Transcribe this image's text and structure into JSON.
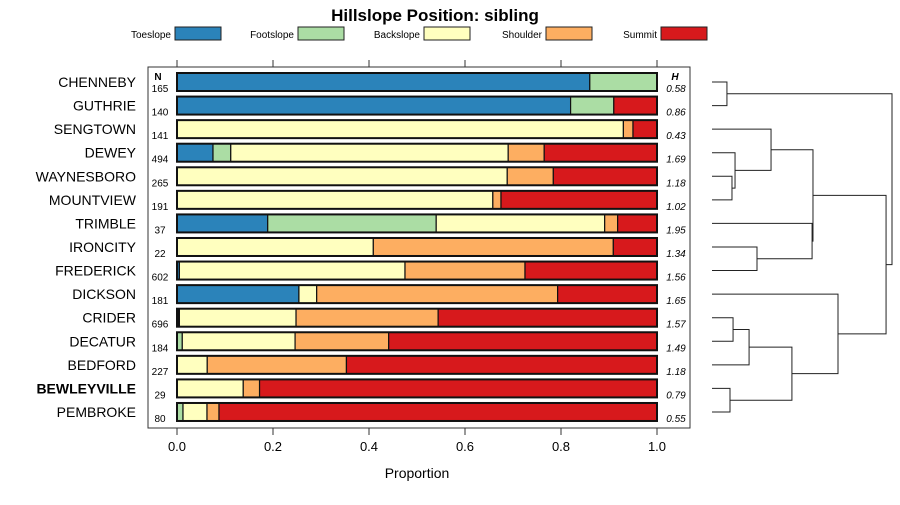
{
  "chart_data": {
    "type": "bar",
    "orientation": "horizontal-stacked",
    "title": "Hillslope Position: sibling",
    "xlabel": "Proportion",
    "xlim": [
      0,
      1
    ],
    "xticks": [
      "0.0",
      "0.2",
      "0.4",
      "0.6",
      "0.8",
      "1.0"
    ],
    "xtick_values": [
      0,
      0.2,
      0.4,
      0.6,
      0.8,
      1.0
    ],
    "legend_position": "top",
    "n_header": "N",
    "h_header": "H",
    "highlight": "BEWLEYVILLE",
    "series": [
      {
        "name": "Toeslope",
        "color": "#2b83ba"
      },
      {
        "name": "Footslope",
        "color": "#abdda4"
      },
      {
        "name": "Backslope",
        "color": "#ffffbf"
      },
      {
        "name": "Shoulder",
        "color": "#fdae61"
      },
      {
        "name": "Summit",
        "color": "#d7191c"
      }
    ],
    "categories": [
      "CHENNEBY",
      "GUTHRIE",
      "SENGTOWN",
      "DEWEY",
      "WAYNESBORO",
      "MOUNTVIEW",
      "TRIMBLE",
      "IRONCITY",
      "FREDERICK",
      "DICKSON",
      "CRIDER",
      "DECATUR",
      "BEDFORD",
      "BEWLEYVILLE",
      "PEMBROKE"
    ],
    "n": [
      "165",
      "140",
      "141",
      "494",
      "265",
      "191",
      "37",
      "22",
      "602",
      "181",
      "696",
      "184",
      "227",
      "29",
      "80"
    ],
    "h": [
      "0.58",
      "0.86",
      "0.43",
      "1.69",
      "1.18",
      "1.02",
      "1.95",
      "1.34",
      "1.56",
      "1.65",
      "1.57",
      "1.49",
      "1.18",
      "0.79",
      "0.55"
    ],
    "values": [
      [
        0.86,
        0.14,
        0,
        0,
        0
      ],
      [
        0.82,
        0.09,
        0,
        0,
        0.09
      ],
      [
        0,
        0,
        0.93,
        0.02,
        0.05
      ],
      [
        0.075,
        0.037,
        0.578,
        0.075,
        0.235
      ],
      [
        0,
        0,
        0.688,
        0.096,
        0.216
      ],
      [
        0,
        0,
        0.658,
        0.017,
        0.325
      ],
      [
        0.189,
        0.351,
        0.351,
        0.027,
        0.082
      ],
      [
        0,
        0,
        0.409,
        0.5,
        0.091
      ],
      [
        0.005,
        0,
        0.47,
        0.25,
        0.275
      ],
      [
        0.254,
        0,
        0.037,
        0.502,
        0.207
      ],
      [
        0.003,
        0.002,
        0.243,
        0.296,
        0.456
      ],
      [
        0,
        0.011,
        0.235,
        0.195,
        0.559
      ],
      [
        0,
        0,
        0.063,
        0.29,
        0.647
      ],
      [
        0,
        0,
        0.138,
        0.034,
        0.828
      ],
      [
        0,
        0.0125,
        0.05,
        0.025,
        0.9125
      ]
    ],
    "dendrogram": {
      "merges": [
        {
          "a": "L0",
          "b": "L1",
          "height": 0.083
        },
        {
          "a": "L4",
          "b": "L5",
          "height": 0.111
        },
        {
          "a": "L3",
          "b": "N2",
          "height": 0.128
        },
        {
          "a": "L2",
          "b": "N3",
          "height": 0.328
        },
        {
          "a": "L7",
          "b": "L8",
          "height": 0.25
        },
        {
          "a": "L6",
          "b": "N5",
          "height": 0.556
        },
        {
          "a": "N4",
          "b": "N6",
          "height": 0.561
        },
        {
          "a": "L10",
          "b": "L11",
          "height": 0.117
        },
        {
          "a": "N8",
          "b": "L12",
          "height": 0.206
        },
        {
          "a": "L13",
          "b": "L14",
          "height": 0.1
        },
        {
          "a": "N9",
          "b": "N10",
          "height": 0.444
        },
        {
          "a": "L9",
          "b": "N11",
          "height": 0.7
        },
        {
          "a": "N7",
          "b": "N12",
          "height": 0.967
        },
        {
          "a": "N1",
          "b": "N13",
          "height": 1.0
        }
      ]
    }
  }
}
